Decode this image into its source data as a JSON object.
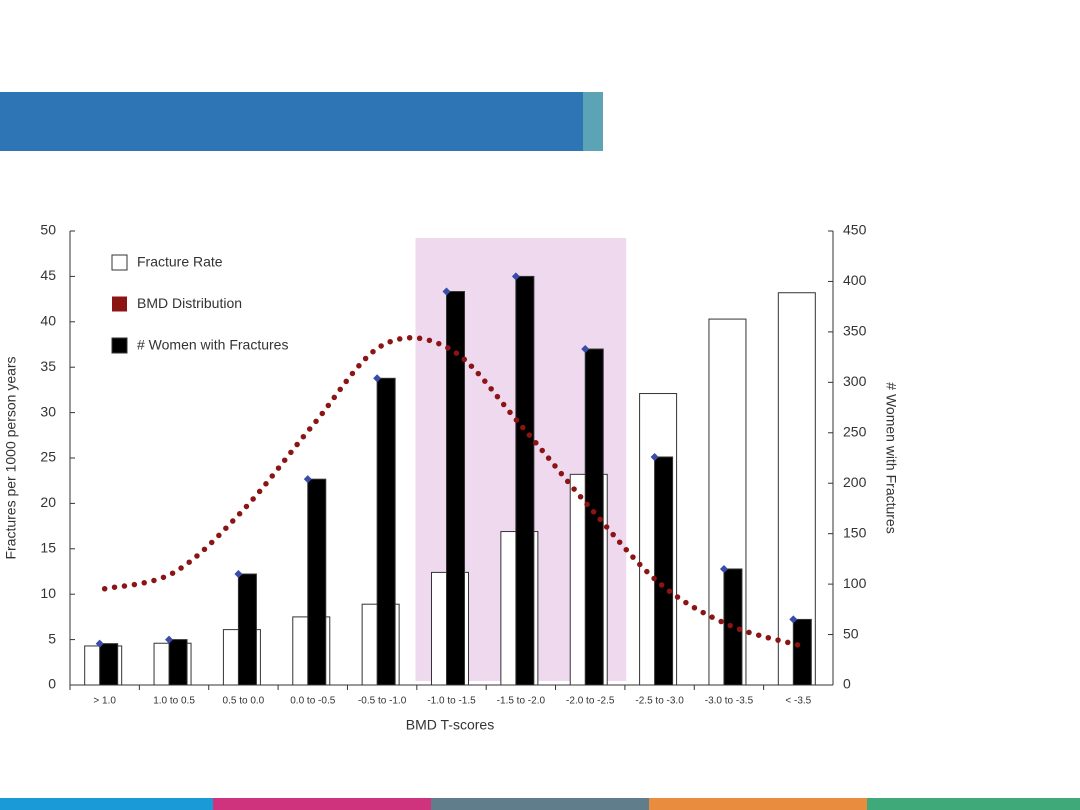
{
  "chart_data": {
    "type": "bar",
    "x_label": "BMD T-scores",
    "y_label": "Fractures per 1000 person years",
    "y2_label": "# Women with Fractures",
    "categories": [
      "> 1.0",
      "1.0 to 0.5",
      "0.5 to 0.0",
      "0.0 to -0.5",
      "-0.5 to -1.0",
      "-1.0 to -1.5",
      "-1.5 to -2.0",
      "-2.0 to -2.5",
      "-2.5 to -3.0",
      "-3.0 to -3.5",
      "< -3.5"
    ],
    "series": [
      {
        "name": "Fracture Rate",
        "type": "bar",
        "color": "#ffffff",
        "values": [
          4.3,
          4.6,
          6.1,
          7.5,
          8.9,
          12.4,
          16.9,
          23.2,
          32.1,
          40.3,
          43.2
        ]
      },
      {
        "name": "BMD Distribution",
        "type": "line",
        "color": "#8b1414",
        "values": [
          10.6,
          12.4,
          19.3,
          28.6,
          37.4,
          36.9,
          28.6,
          19.5,
          11.2,
          6.6,
          4.4
        ]
      },
      {
        "name": "# Women with Fractures",
        "type": "bar",
        "axis": "y2",
        "color": "#000000",
        "values": [
          41,
          45,
          110,
          204,
          304,
          390,
          405,
          333,
          226,
          115,
          65
        ]
      }
    ],
    "ylim": [
      0,
      50
    ],
    "yticks": [
      0,
      5,
      10,
      15,
      20,
      25,
      30,
      35,
      40,
      45,
      50
    ],
    "y2lim": [
      0,
      450
    ],
    "y2ticks": [
      0,
      50,
      100,
      150,
      200,
      250,
      300,
      350,
      400,
      450
    ],
    "legend": "upper left"
  }
}
